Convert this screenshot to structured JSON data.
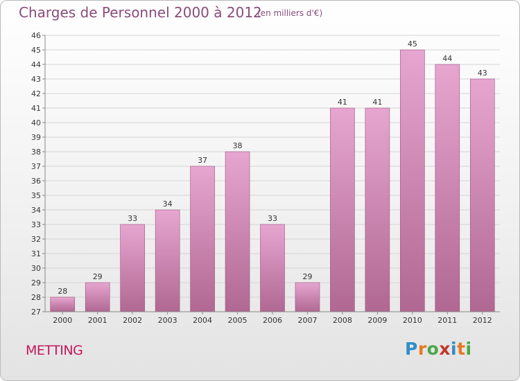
{
  "title": "Charges de Personnel 2000 à 2012",
  "subtitle": "(en milliers d'€)",
  "location": "METTING",
  "brand": "Proxiti",
  "colors": {
    "bar_top": "#e6a6d0",
    "bar_bottom": "#b06892",
    "bar_border": "#a05080"
  },
  "chart_data": {
    "type": "bar",
    "title": "Charges de Personnel 2000 à 2012",
    "subtitle": "(en milliers d'€)",
    "categories": [
      "2000",
      "2001",
      "2002",
      "2003",
      "2004",
      "2005",
      "2006",
      "2007",
      "2008",
      "2009",
      "2010",
      "2011",
      "2012"
    ],
    "values": [
      28,
      29,
      33,
      34,
      37,
      38,
      33,
      29,
      41,
      41,
      45,
      44,
      43
    ],
    "ylim": [
      27,
      46
    ],
    "yticks": [
      27,
      28,
      29,
      30,
      31,
      32,
      33,
      34,
      35,
      36,
      37,
      38,
      39,
      40,
      41,
      42,
      43,
      44,
      45,
      46
    ],
    "grid": true,
    "xlabel": "",
    "ylabel": ""
  }
}
